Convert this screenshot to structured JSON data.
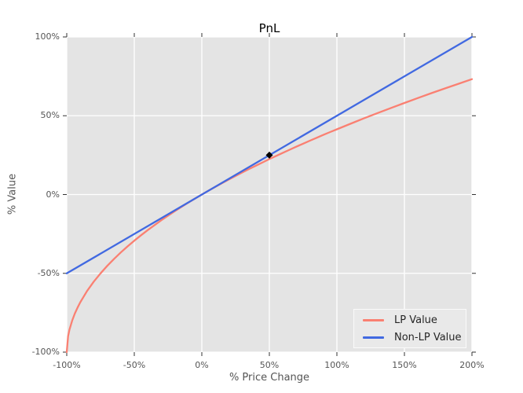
{
  "chart_data": {
    "type": "line",
    "title": "PnL",
    "xlabel": "% Price Change",
    "ylabel": "% Value",
    "xlim": [
      -1.0,
      2.0
    ],
    "ylim": [
      -1.0,
      1.0
    ],
    "grid": true,
    "legend_position": "lower right",
    "colors": {
      "plot_background": "#e4e4e4",
      "grid": "#ffffff",
      "tick_text": "#555555",
      "title_text": "#000000",
      "tick_mark": "#333333"
    },
    "x_ticks": {
      "values": [
        -1.0,
        -0.5,
        0.0,
        0.5,
        1.0,
        1.5,
        2.0
      ],
      "labels": [
        "-100%",
        "-50%",
        "0%",
        "50%",
        "100%",
        "150%",
        "200%"
      ]
    },
    "y_ticks": {
      "values": [
        1.0,
        0.5,
        0.0,
        -0.5,
        -1.0
      ],
      "labels": [
        "100%",
        "50%",
        "0%",
        "-50%",
        "-100%"
      ]
    },
    "series": [
      {
        "name": "LP Value",
        "color": "#fa8072",
        "x": [
          -1.0,
          -0.99,
          -0.98,
          -0.96,
          -0.94,
          -0.92,
          -0.9,
          -0.85,
          -0.8,
          -0.75,
          -0.7,
          -0.65,
          -0.6,
          -0.55,
          -0.5,
          -0.45,
          -0.4,
          -0.35,
          -0.3,
          -0.25,
          -0.2,
          -0.15,
          -0.1,
          -0.05,
          0.0,
          0.05,
          0.1,
          0.15,
          0.2,
          0.25,
          0.3,
          0.35,
          0.4,
          0.45,
          0.5,
          0.55,
          0.6,
          0.65,
          0.7,
          0.75,
          0.8,
          0.85,
          0.9,
          0.95,
          1.0,
          1.1,
          1.2,
          1.3,
          1.4,
          1.5,
          1.6,
          1.7,
          1.8,
          1.9,
          2.0
        ],
        "y": [
          -1.0,
          -0.9,
          -0.8586,
          -0.8,
          -0.7551,
          -0.7172,
          -0.6838,
          -0.6127,
          -0.5528,
          -0.5,
          -0.4523,
          -0.4084,
          -0.3675,
          -0.3292,
          -0.2929,
          -0.2584,
          -0.2254,
          -0.1938,
          -0.1633,
          -0.134,
          -0.1056,
          -0.078,
          -0.0513,
          -0.0253,
          0.0,
          0.0247,
          0.0488,
          0.0724,
          0.0954,
          0.118,
          0.1402,
          0.1619,
          0.1832,
          0.2042,
          0.2247,
          0.245,
          0.2649,
          0.2845,
          0.3038,
          0.3229,
          0.3416,
          0.3601,
          0.3784,
          0.3964,
          0.4142,
          0.4491,
          0.4832,
          0.5166,
          0.5492,
          0.5811,
          0.6125,
          0.6432,
          0.6733,
          0.7029,
          0.7321
        ]
      },
      {
        "name": "Non-LP Value",
        "color": "#4169e1",
        "x": [
          -1.0,
          2.0
        ],
        "y": [
          -0.5,
          1.0
        ]
      }
    ],
    "point_marker": {
      "x": 0.5,
      "y": 0.25,
      "shape": "diamond",
      "color": "#000000"
    }
  }
}
